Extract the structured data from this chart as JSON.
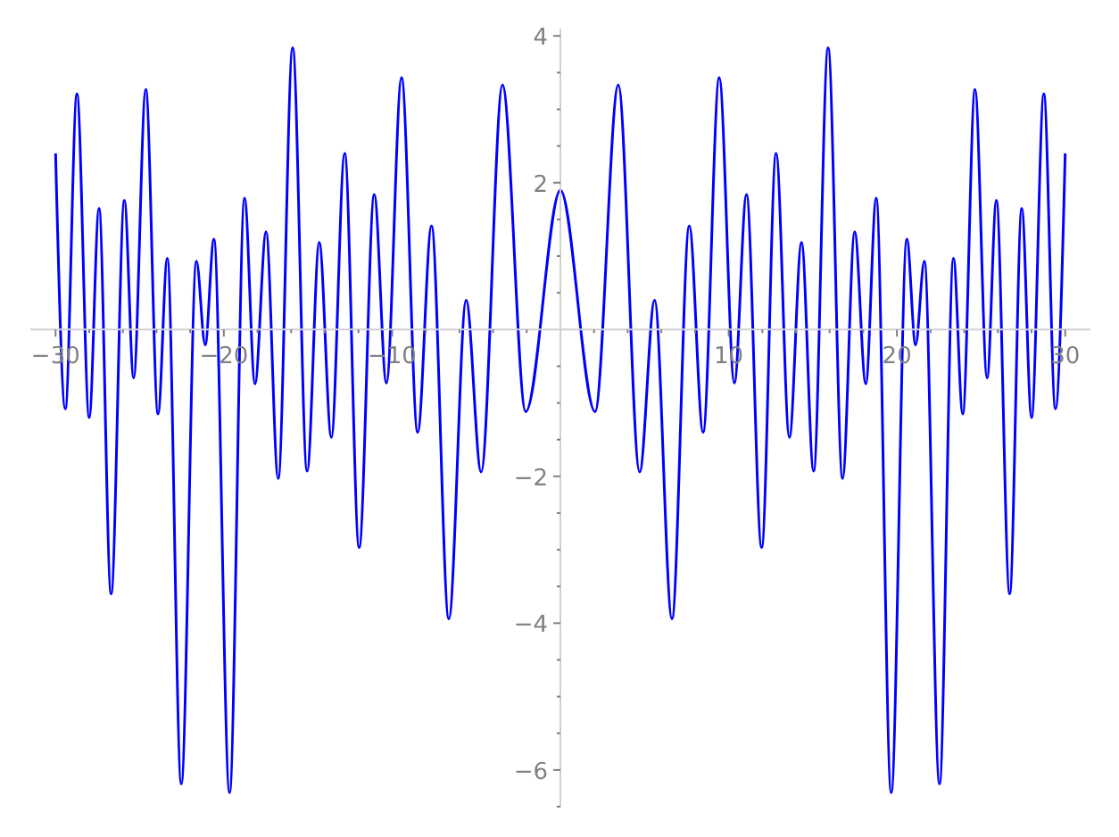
{
  "chart_data": {
    "type": "line",
    "x": [
      -30,
      -29.42,
      -28.73,
      -28.0,
      -27.42,
      -26.7,
      -25.91,
      -25.36,
      -24.64,
      -23.91,
      -23.36,
      -22.53,
      -21.63,
      -21.11,
      -20.59,
      -19.66,
      -18.77,
      -18.15,
      -17.49,
      -16.77,
      -15.91,
      -15.05,
      -14.33,
      -13.61,
      -12.82,
      -11.96,
      -11.06,
      -10.34,
      -9.44,
      -8.48,
      -7.66,
      -6.63,
      -5.6,
      -4.71,
      -3.44,
      -2.06,
      0,
      2.06,
      3.44,
      4.71,
      5.6,
      6.63,
      7.66,
      8.48,
      9.44,
      10.34,
      11.06,
      11.96,
      12.82,
      13.61,
      14.33,
      15.05,
      15.91,
      16.77,
      17.49,
      18.15,
      18.77,
      19.66,
      20.59,
      21.11,
      21.63,
      22.53,
      23.36,
      23.91,
      24.64,
      25.36,
      25.91,
      26.7,
      27.42,
      28.0,
      28.73,
      29.42,
      30
    ],
    "series": [
      {
        "color": "#0000ff",
        "values": [
          2.4,
          -1.08,
          3.21,
          -1.2,
          1.65,
          -3.6,
          1.76,
          -0.66,
          3.27,
          -1.15,
          0.97,
          -6.19,
          0.93,
          -0.21,
          1.23,
          -6.31,
          1.79,
          -0.74,
          1.33,
          -2.03,
          3.84,
          -1.93,
          1.19,
          -1.47,
          2.4,
          -2.97,
          1.84,
          -0.73,
          3.43,
          -1.4,
          1.41,
          -3.94,
          0.4,
          -1.94,
          3.33,
          -1.12,
          1.9,
          -1.12,
          3.33,
          -1.94,
          0.4,
          -3.94,
          1.41,
          -1.4,
          3.43,
          -0.73,
          1.84,
          -2.97,
          2.4,
          -1.47,
          1.19,
          -1.93,
          3.84,
          -2.03,
          1.33,
          -0.74,
          1.79,
          -6.31,
          1.23,
          -0.21,
          0.93,
          -6.19,
          0.97,
          -1.15,
          3.27,
          -0.66,
          1.76,
          -3.6,
          1.65,
          -1.2,
          3.21,
          -1.08,
          2.4
        ]
      }
    ],
    "xlim": [
      -31.5,
      31.5
    ],
    "ylim": [
      -6.5,
      4.1
    ],
    "xticks": [
      {
        "value": -30,
        "label": "−30"
      },
      {
        "value": -28,
        "label": null
      },
      {
        "value": -26,
        "label": null
      },
      {
        "value": -24,
        "label": null
      },
      {
        "value": -22,
        "label": null
      },
      {
        "value": -20,
        "label": "−20"
      },
      {
        "value": -18,
        "label": null
      },
      {
        "value": -16,
        "label": null
      },
      {
        "value": -14,
        "label": null
      },
      {
        "value": -12,
        "label": null
      },
      {
        "value": -10,
        "label": "−10"
      },
      {
        "value": -8,
        "label": null
      },
      {
        "value": -6,
        "label": null
      },
      {
        "value": -4,
        "label": null
      },
      {
        "value": -2,
        "label": null
      },
      {
        "value": 2,
        "label": null
      },
      {
        "value": 4,
        "label": null
      },
      {
        "value": 6,
        "label": null
      },
      {
        "value": 8,
        "label": null
      },
      10,
      {
        "value": 12,
        "label": null
      },
      {
        "value": 14,
        "label": null
      },
      {
        "value": 16,
        "label": null
      },
      {
        "value": 18,
        "label": null
      },
      20,
      {
        "value": 22,
        "label": null
      },
      {
        "value": 24,
        "label": null
      },
      {
        "value": 26,
        "label": null
      },
      {
        "value": 28,
        "label": null
      },
      30
    ],
    "yticks": [
      {
        "value": -6.5,
        "label": null
      },
      {
        "value": -6,
        "label": "−6"
      },
      {
        "value": -5.5,
        "label": null
      },
      {
        "value": -5,
        "label": null
      },
      {
        "value": -4.5,
        "label": null
      },
      {
        "value": -4,
        "label": "−4"
      },
      {
        "value": -3.5,
        "label": null
      },
      {
        "value": -3,
        "label": null
      },
      {
        "value": -2.5,
        "label": null
      },
      {
        "value": -2,
        "label": "−2"
      },
      {
        "value": -1.5,
        "label": null
      },
      {
        "value": -1,
        "label": null
      },
      {
        "value": -0.5,
        "label": null
      },
      {
        "value": 0.5,
        "label": null
      },
      {
        "value": 1,
        "label": null
      },
      {
        "value": 1.5,
        "label": null
      },
      2,
      {
        "value": 2.5,
        "label": null
      },
      {
        "value": 3,
        "label": null
      },
      {
        "value": 3.5,
        "label": null
      },
      4
    ],
    "marker": "none",
    "line_style": "solid"
  }
}
